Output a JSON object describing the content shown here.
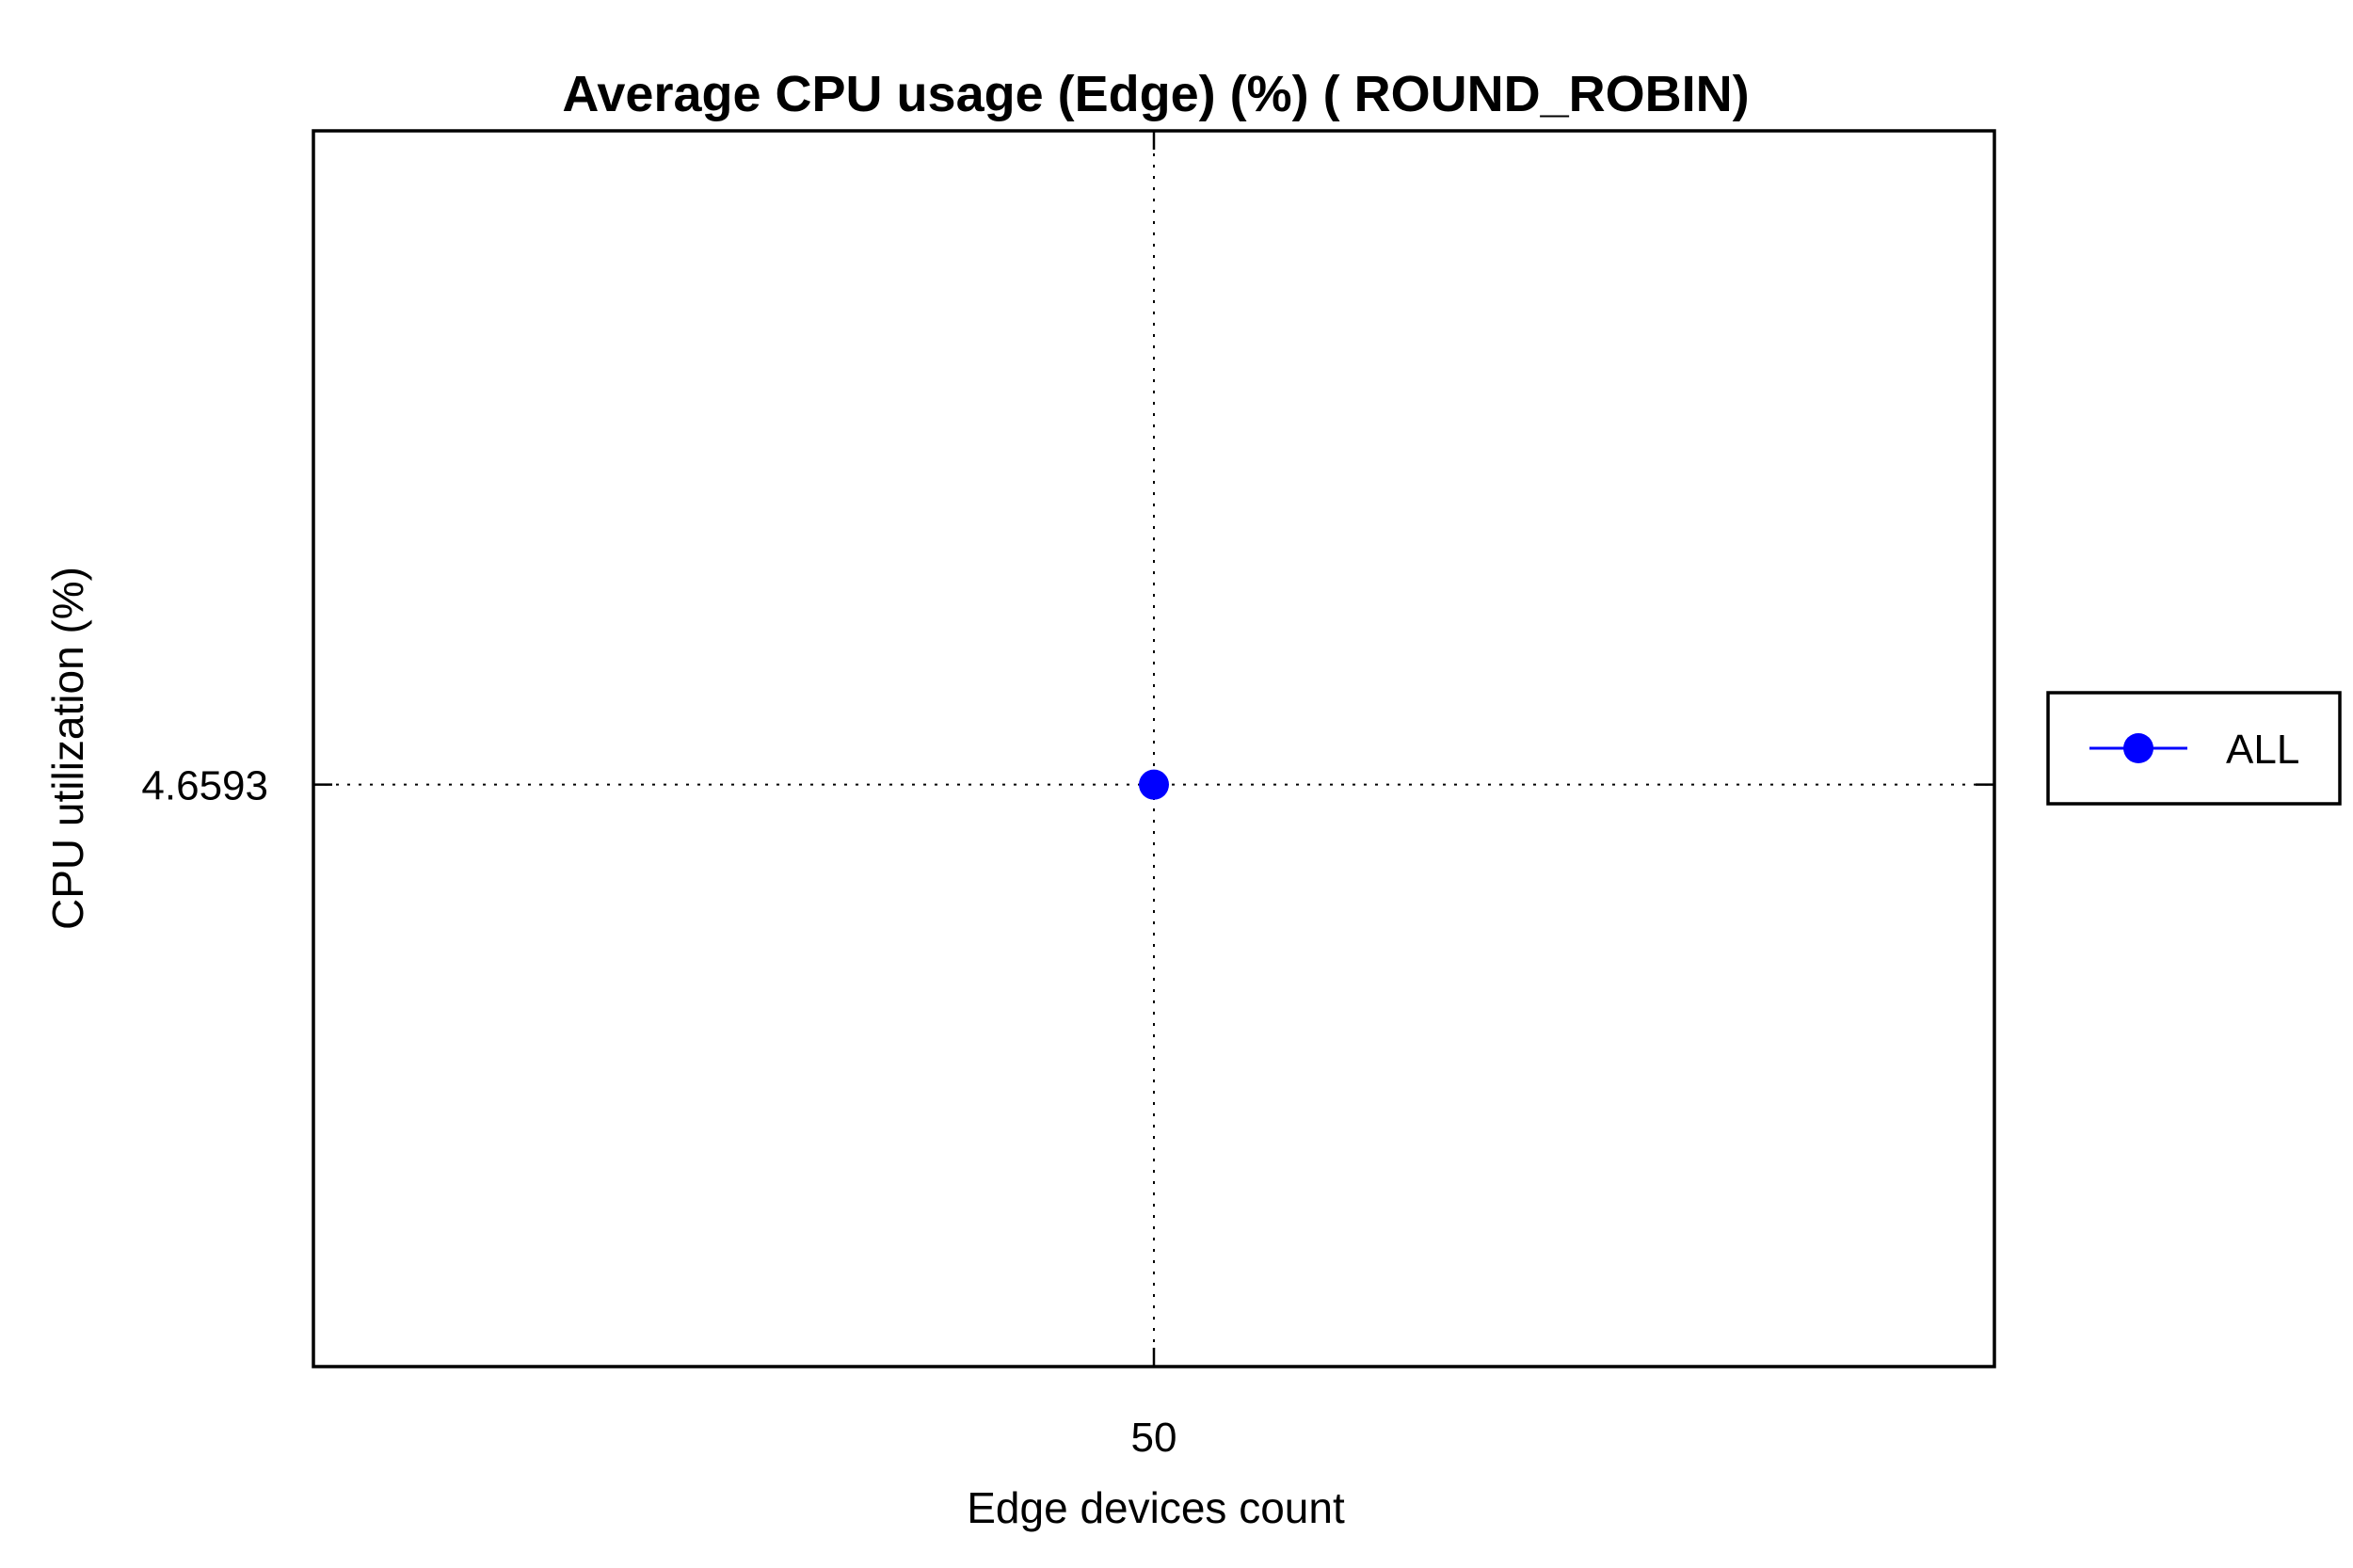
{
  "chart_data": {
    "type": "line",
    "title": "Average CPU usage (Edge) (%) ( ROUND_ROBIN)",
    "xlabel": "Edge devices count",
    "ylabel": "CPU utilization (%)",
    "x_ticks": [
      "50"
    ],
    "y_ticks": [
      "4.6593"
    ],
    "xlim": [
      40,
      60
    ],
    "ylim": [
      4.0,
      5.4
    ],
    "grid": true,
    "legend_position": "right",
    "series": [
      {
        "name": "ALL",
        "color": "#0000ff",
        "marker": "circle",
        "x": [
          50
        ],
        "y": [
          4.6593
        ]
      }
    ]
  }
}
